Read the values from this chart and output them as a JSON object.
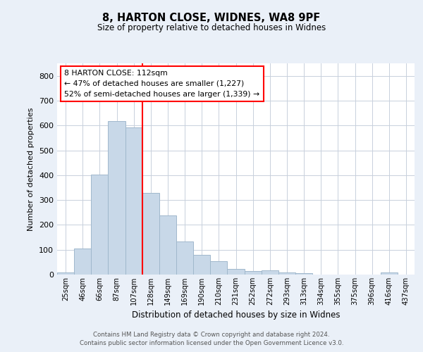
{
  "title1": "8, HARTON CLOSE, WIDNES, WA8 9PF",
  "title2": "Size of property relative to detached houses in Widnes",
  "xlabel": "Distribution of detached houses by size in Widnes",
  "ylabel": "Number of detached properties",
  "bins": [
    "25sqm",
    "46sqm",
    "66sqm",
    "87sqm",
    "107sqm",
    "128sqm",
    "149sqm",
    "169sqm",
    "190sqm",
    "210sqm",
    "231sqm",
    "252sqm",
    "272sqm",
    "293sqm",
    "313sqm",
    "334sqm",
    "355sqm",
    "375sqm",
    "396sqm",
    "416sqm",
    "437sqm"
  ],
  "values": [
    8,
    105,
    403,
    617,
    591,
    330,
    238,
    133,
    78,
    53,
    23,
    15,
    18,
    8,
    5,
    0,
    0,
    0,
    0,
    8,
    0
  ],
  "bar_color": "#c8d8e8",
  "bar_edge_color": "#a0b8cc",
  "vline_x": 4.5,
  "vline_color": "red",
  "annotation_text": "8 HARTON CLOSE: 112sqm\n← 47% of detached houses are smaller (1,227)\n52% of semi-detached houses are larger (1,339) →",
  "ylim": [
    0,
    850
  ],
  "yticks": [
    0,
    100,
    200,
    300,
    400,
    500,
    600,
    700,
    800
  ],
  "footer": "Contains HM Land Registry data © Crown copyright and database right 2024.\nContains public sector information licensed under the Open Government Licence v3.0.",
  "bg_color": "#eaf0f8",
  "plot_bg_color": "#ffffff",
  "grid_color": "#c8d0dc"
}
